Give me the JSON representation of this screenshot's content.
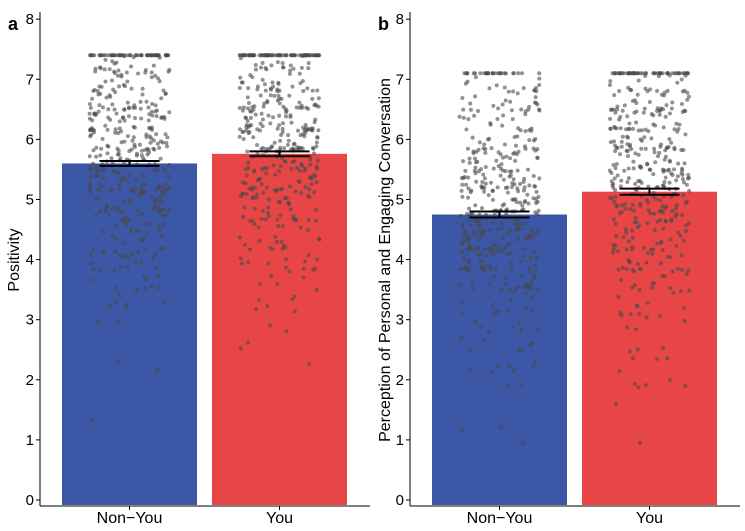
{
  "chart_data": [
    {
      "type": "bar",
      "panel_label": "a",
      "ylabel": "Positivity",
      "xlabel": "",
      "categories": [
        "Non−You",
        "You"
      ],
      "values": [
        5.6,
        5.76
      ],
      "error": [
        0.04,
        0.04
      ],
      "ylim": [
        0,
        8
      ],
      "yticks": [
        "0",
        "1",
        "2",
        "3",
        "4",
        "5",
        "6",
        "7",
        "8"
      ],
      "colors": [
        "#3b57a6",
        "#e84646"
      ],
      "jitter": {
        "n_per_group": 420,
        "min": 0.6,
        "max": 7.4,
        "color": "#4a4a4a"
      }
    },
    {
      "type": "bar",
      "panel_label": "b",
      "ylabel": "Perception of Personal and Engaging Conversation",
      "xlabel": "",
      "categories": [
        "Non−You",
        "You"
      ],
      "values": [
        4.75,
        5.13
      ],
      "error": [
        0.05,
        0.05
      ],
      "ylim": [
        0,
        8
      ],
      "yticks": [
        "0",
        "1",
        "2",
        "3",
        "4",
        "5",
        "6",
        "7",
        "8"
      ],
      "colors": [
        "#3b57a6",
        "#e84646"
      ],
      "jitter": {
        "n_per_group": 420,
        "min": 0.95,
        "max": 7.1,
        "color": "#4a4a4a"
      }
    }
  ]
}
